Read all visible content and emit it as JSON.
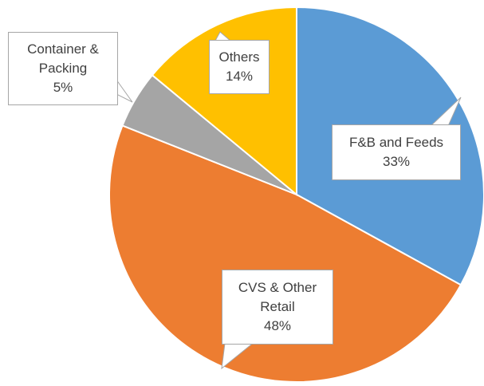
{
  "chart_data": {
    "type": "pie",
    "categories": [
      "F&B and Feeds",
      "CVS & Other Retail",
      "Container & Packing",
      "Others"
    ],
    "values": [
      33,
      48,
      5,
      14
    ],
    "value_labels": [
      "33%",
      "48%",
      "5%",
      "14%"
    ],
    "colors": [
      "#5b9bd5",
      "#ed7d31",
      "#a5a5a5",
      "#ffc000"
    ]
  }
}
